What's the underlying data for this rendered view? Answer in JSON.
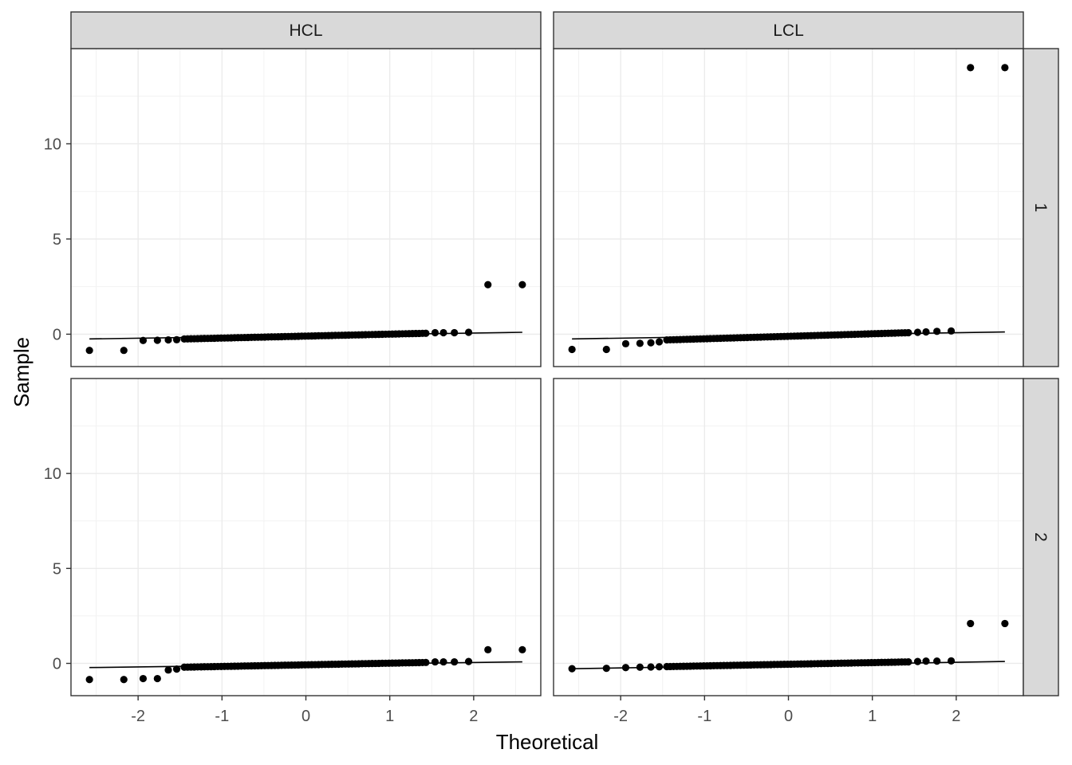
{
  "chart_data": {
    "type": "scatter",
    "subtype": "qq-plot-faceted",
    "title": "",
    "xlabel": "Theoretical",
    "ylabel": "Sample",
    "xlim": [
      -2.8,
      2.8
    ],
    "ylim": [
      -1.7,
      15.0
    ],
    "x_ticks": [
      -2,
      -1,
      0,
      1,
      2
    ],
    "y_ticks": [
      0,
      5,
      10
    ],
    "grid": true,
    "legend": "none",
    "point_color": "#000000",
    "column_strips": [
      "HCL",
      "LCL"
    ],
    "row_strips": [
      "1",
      "2"
    ],
    "panels": [
      {
        "col": "HCL",
        "row": "1",
        "reference_line": {
          "x": [
            -2.58,
            2.58
          ],
          "y": [
            -0.25,
            0.1
          ]
        },
        "points": [
          {
            "x": -2.58,
            "y": -0.85
          },
          {
            "x": -2.17,
            "y": -0.85
          },
          {
            "x": -1.94,
            "y": -0.33
          },
          {
            "x": -1.77,
            "y": -0.32
          },
          {
            "x": -1.64,
            "y": -0.3
          },
          {
            "x": -1.54,
            "y": -0.29
          },
          {
            "x": 1.54,
            "y": 0.08
          },
          {
            "x": 1.64,
            "y": 0.08
          },
          {
            "x": 1.77,
            "y": 0.08
          },
          {
            "x": 1.94,
            "y": 0.1
          },
          {
            "x": 2.17,
            "y": 2.6
          },
          {
            "x": 2.58,
            "y": 2.6
          }
        ],
        "bulk": {
          "from": -1.45,
          "to": 1.45,
          "step": 0.04,
          "y_at_from": -0.25,
          "y_at_to": 0.05
        }
      },
      {
        "col": "LCL",
        "row": "1",
        "reference_line": {
          "x": [
            -2.58,
            2.58
          ],
          "y": [
            -0.25,
            0.12
          ]
        },
        "points": [
          {
            "x": -2.58,
            "y": -0.8
          },
          {
            "x": -2.17,
            "y": -0.8
          },
          {
            "x": -1.94,
            "y": -0.5
          },
          {
            "x": -1.77,
            "y": -0.48
          },
          {
            "x": -1.64,
            "y": -0.45
          },
          {
            "x": -1.54,
            "y": -0.4
          },
          {
            "x": 1.54,
            "y": 0.1
          },
          {
            "x": 1.64,
            "y": 0.12
          },
          {
            "x": 1.77,
            "y": 0.15
          },
          {
            "x": 1.94,
            "y": 0.17
          },
          {
            "x": 2.17,
            "y": 14.0
          },
          {
            "x": 2.58,
            "y": 14.0
          }
        ],
        "bulk": {
          "from": -1.45,
          "to": 1.45,
          "step": 0.04,
          "y_at_from": -0.3,
          "y_at_to": 0.08
        }
      },
      {
        "col": "HCL",
        "row": "2",
        "reference_line": {
          "x": [
            -2.58,
            2.58
          ],
          "y": [
            -0.22,
            0.08
          ]
        },
        "points": [
          {
            "x": -2.58,
            "y": -0.85
          },
          {
            "x": -2.17,
            "y": -0.85
          },
          {
            "x": -1.94,
            "y": -0.8
          },
          {
            "x": -1.77,
            "y": -0.8
          },
          {
            "x": -1.64,
            "y": -0.35
          },
          {
            "x": -1.54,
            "y": -0.3
          },
          {
            "x": 1.54,
            "y": 0.08
          },
          {
            "x": 1.64,
            "y": 0.08
          },
          {
            "x": 1.77,
            "y": 0.08
          },
          {
            "x": 1.94,
            "y": 0.1
          },
          {
            "x": 2.17,
            "y": 0.72
          },
          {
            "x": 2.58,
            "y": 0.72
          }
        ],
        "bulk": {
          "from": -1.45,
          "to": 1.45,
          "step": 0.04,
          "y_at_from": -0.2,
          "y_at_to": 0.05
        }
      },
      {
        "col": "LCL",
        "row": "2",
        "reference_line": {
          "x": [
            -2.58,
            2.58
          ],
          "y": [
            -0.28,
            0.1
          ]
        },
        "points": [
          {
            "x": -2.58,
            "y": -0.28
          },
          {
            "x": -2.17,
            "y": -0.26
          },
          {
            "x": -1.94,
            "y": -0.22
          },
          {
            "x": -1.77,
            "y": -0.2
          },
          {
            "x": -1.64,
            "y": -0.19
          },
          {
            "x": -1.54,
            "y": -0.18
          },
          {
            "x": 1.54,
            "y": 0.1
          },
          {
            "x": 1.64,
            "y": 0.12
          },
          {
            "x": 1.77,
            "y": 0.12
          },
          {
            "x": 1.94,
            "y": 0.13
          },
          {
            "x": 2.17,
            "y": 2.1
          },
          {
            "x": 2.58,
            "y": 2.1
          }
        ],
        "bulk": {
          "from": -1.45,
          "to": 1.45,
          "step": 0.04,
          "y_at_from": -0.17,
          "y_at_to": 0.08
        }
      }
    ]
  }
}
